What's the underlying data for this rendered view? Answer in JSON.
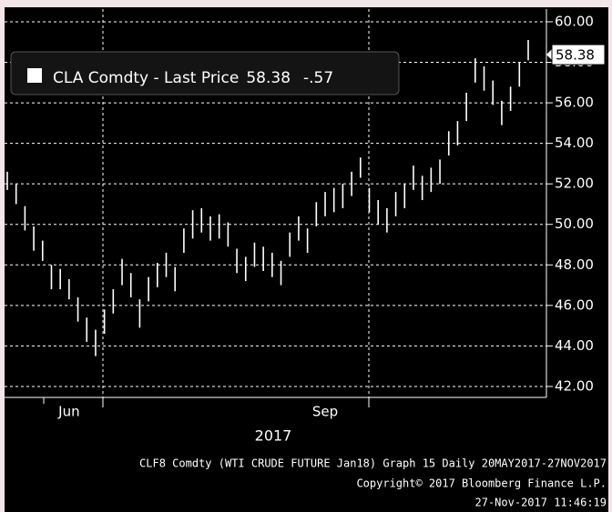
{
  "chart_data": {
    "type": "hilo",
    "series": [
      {
        "name": "CLA Comdty - Last Price",
        "color": "#ffffff",
        "high": [
          52.6,
          52.0,
          50.9,
          49.9,
          49.2,
          48.0,
          47.8,
          47.3,
          46.4,
          45.4,
          44.8,
          45.8,
          46.8,
          48.3,
          47.6,
          46.3,
          47.4,
          48.1,
          48.6,
          47.9,
          49.8,
          50.7,
          50.8,
          50.4,
          50.5,
          50.1,
          48.8,
          48.4,
          49.1,
          48.9,
          48.6,
          48.2,
          49.6,
          50.4,
          49.8,
          51.1,
          51.6,
          51.8,
          52.0,
          52.6,
          53.3,
          51.8,
          51.2,
          50.8,
          51.6,
          52.0,
          52.9,
          52.4,
          52.8,
          53.2,
          54.6,
          55.1,
          56.5,
          58.2,
          57.8,
          57.1,
          56.1,
          56.8,
          58.0,
          59.1
        ],
        "low": [
          51.7,
          51.0,
          49.7,
          48.7,
          48.2,
          46.8,
          46.8,
          46.3,
          45.2,
          44.2,
          43.5,
          44.6,
          45.6,
          47.0,
          46.4,
          44.9,
          46.2,
          46.9,
          47.4,
          46.7,
          48.6,
          49.3,
          49.6,
          49.2,
          49.3,
          48.9,
          47.6,
          47.2,
          47.9,
          47.7,
          47.4,
          47.0,
          48.4,
          49.2,
          48.6,
          49.9,
          50.4,
          50.6,
          50.8,
          51.4,
          52.3,
          50.6,
          50.0,
          49.6,
          50.4,
          50.8,
          51.7,
          51.2,
          51.6,
          52.0,
          53.4,
          53.9,
          55.1,
          57.0,
          56.6,
          55.9,
          54.9,
          55.6,
          56.8,
          58.1
        ],
        "last_price": 58.38,
        "change": {
          "value": -0.57,
          "label": "-.57"
        }
      }
    ],
    "categories": [
      null,
      null,
      null,
      null,
      null,
      null,
      null,
      "Jun",
      null,
      null,
      null,
      null,
      null,
      null,
      null,
      null,
      null,
      null,
      null,
      null,
      null,
      null,
      null,
      null,
      null,
      null,
      null,
      null,
      null,
      null,
      null,
      null,
      null,
      null,
      null,
      null,
      "Sep",
      null,
      null,
      null,
      null,
      null,
      null,
      null,
      null,
      null,
      null,
      null,
      null,
      null,
      null,
      null,
      null,
      null,
      null,
      null,
      null,
      null,
      null,
      null
    ],
    "xlabel": "2017",
    "ylim": [
      41.5,
      60.6
    ],
    "yticks": [
      {
        "value": 42,
        "label": "42.00"
      },
      {
        "value": 44,
        "label": "44.00"
      },
      {
        "value": 46,
        "label": "46.00"
      },
      {
        "value": 48,
        "label": "48.00"
      },
      {
        "value": 50,
        "label": "50.00"
      },
      {
        "value": 52,
        "label": "52.00"
      },
      {
        "value": 54,
        "label": "54.00"
      },
      {
        "value": 56,
        "label": "56.00"
      },
      {
        "value": 58,
        "label": "58.00"
      },
      {
        "value": 60,
        "label": "60.00"
      }
    ],
    "grid": true,
    "footer": [
      "CLF8 Comdty (WTI CRUDE FUTURE  Jan18) Graph 15  Daily 20MAY2017-27NOV2017",
      "Copyright© 2017 Bloomberg Finance L.P.",
      "27-Nov-2017 11:46:19"
    ]
  }
}
